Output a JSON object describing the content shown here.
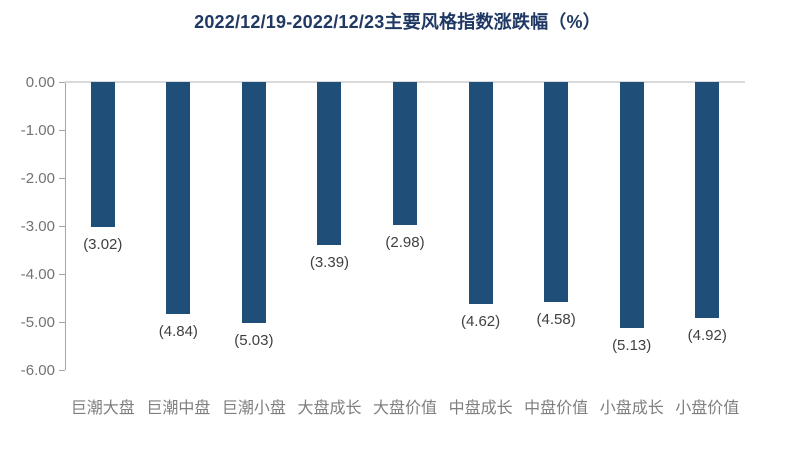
{
  "chart_data": {
    "type": "bar",
    "title": "2022/12/19-2022/12/23主要风格指数涨跌幅（%）",
    "categories": [
      "巨潮大盘",
      "巨潮中盘",
      "巨潮小盘",
      "大盘成长",
      "大盘价值",
      "中盘成长",
      "中盘价值",
      "小盘成长",
      "小盘价值"
    ],
    "values": [
      -3.02,
      -4.84,
      -5.03,
      -3.39,
      -2.98,
      -4.62,
      -4.58,
      -5.13,
      -4.92
    ],
    "data_labels": [
      "(3.02)",
      "(4.84)",
      "(5.03)",
      "(3.39)",
      "(2.98)",
      "(4.62)",
      "(4.58)",
      "(5.13)",
      "(4.92)"
    ],
    "xlabel": "",
    "ylabel": "",
    "ylim": [
      -6,
      0
    ],
    "yticks": [
      0,
      -1,
      -2,
      -3,
      -4,
      -5,
      -6
    ],
    "ytick_labels": [
      "0.00",
      "-1.00",
      "-2.00",
      "-3.00",
      "-4.00",
      "-5.00",
      "-6.00"
    ],
    "grid": "zero-line-only",
    "legend": "none",
    "colors": {
      "bar": "#1F4E79",
      "title": "#1F3864",
      "axis_line": "#A6A6A6",
      "zero_line": "#D9D9D9",
      "ytick_label": "#737373",
      "data_label": "#404040",
      "category_label": "#7F7F7F"
    }
  }
}
